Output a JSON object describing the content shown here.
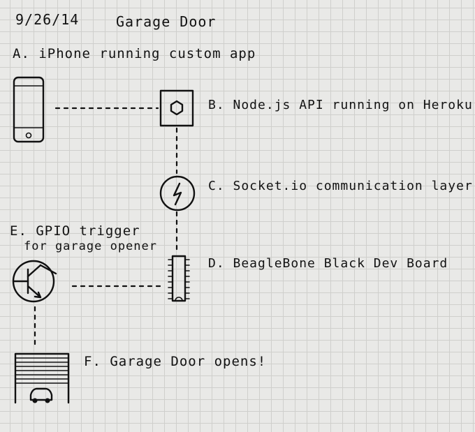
{
  "header": {
    "date": "9/26/14",
    "title": "Garage Door"
  },
  "nodes": {
    "a": {
      "label": "A. iPhone running custom app",
      "icon": "iphone-icon"
    },
    "b": {
      "label": "B. Node.js API running on Heroku",
      "icon": "hexagon-server-icon"
    },
    "c": {
      "label": "C. Socket.io communication layer",
      "icon": "lightning-icon"
    },
    "d": {
      "label": "D. BeagleBone Black Dev Board",
      "icon": "chip-icon"
    },
    "e": {
      "label_line1": "E. GPIO trigger",
      "label_line2": "for garage opener",
      "icon": "transistor-icon"
    },
    "f": {
      "label": "F. Garage Door opens!",
      "icon": "garage-door-icon"
    }
  },
  "colors": {
    "ink": "#111111",
    "paper": "#e9e9e7",
    "grid": "#cfcfcc"
  }
}
